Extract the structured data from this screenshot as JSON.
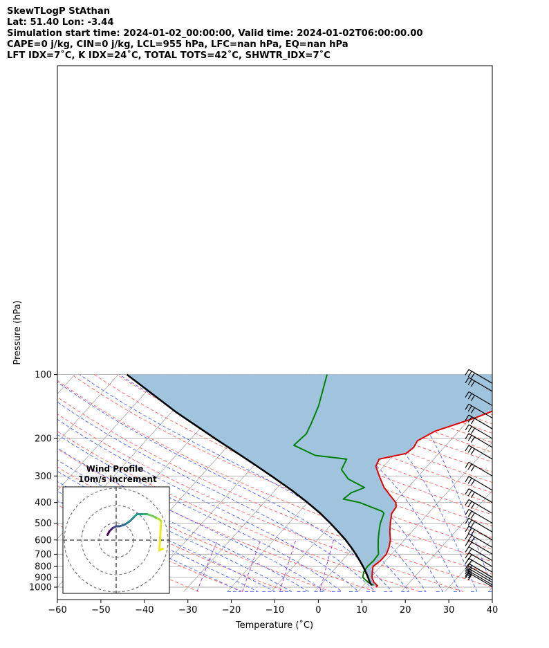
{
  "header": {
    "line1": "SkewTLogP StAthan",
    "line2": "Lat: 51.40   Lon: -3.44",
    "line3": "Simulation start time: 2024-01-02_00:00:00, Valid time: 2024-01-02T06:00:00.00",
    "line4": "CAPE=0 j/kg, CIN=0 j/kg, LCL=955 hPa, LFC=nan hPa, EQ=nan hPa",
    "line5": "LFT IDX=7˚C, K IDX=24˚C, TOTAL TOTS=42˚C, SHWTR_IDX=7˚C"
  },
  "colors": {
    "temperature": "#e00000",
    "dewpoint": "#008000",
    "parcel": "#000000",
    "cape_fill": "#a0c4de",
    "dry_adiabats": "#ff6f6f",
    "moist_adiabats": "#5a6fff",
    "mixing_ratio": "#9933cc",
    "isotherms": "#a8a8a8"
  },
  "inset": {
    "title": "Wind Profile",
    "subtitle": "10m/s increment"
  },
  "chart_data": {
    "type": "line",
    "chart_kind": "skew-T log-P diagram",
    "xlabel": "Temperature (˚C)",
    "ylabel": "Pressure (hPa)",
    "xlim": [
      -60,
      40
    ],
    "ylim": [
      1050,
      100
    ],
    "y_scale": "log",
    "x_ticks": [
      -60,
      -50,
      -40,
      -30,
      -20,
      -10,
      0,
      10,
      20,
      30,
      40
    ],
    "y_ticks": [
      100,
      200,
      300,
      400,
      500,
      600,
      700,
      800,
      900,
      1000
    ],
    "grid": true,
    "series": [
      {
        "key": "temperature",
        "points": [
          [
            1000,
            13.2
          ],
          [
            985,
            13.3
          ],
          [
            950,
            11.8
          ],
          [
            900,
            10.3
          ],
          [
            850,
            9.3
          ],
          [
            800,
            8.3
          ],
          [
            750,
            8.8
          ],
          [
            700,
            8.8
          ],
          [
            650,
            8.0
          ],
          [
            600,
            6.8
          ],
          [
            550,
            5.0
          ],
          [
            500,
            3.3
          ],
          [
            450,
            1.6
          ],
          [
            420,
            1.3
          ],
          [
            400,
            0.3
          ],
          [
            370,
            -2.5
          ],
          [
            340,
            -5.5
          ],
          [
            300,
            -9.0
          ],
          [
            270,
            -11.8
          ],
          [
            250,
            -12.5
          ],
          [
            235,
            -7.5
          ],
          [
            220,
            -7.0
          ],
          [
            205,
            -7.5
          ],
          [
            185,
            -5.5
          ],
          [
            160,
            1.0
          ],
          [
            145,
            4.5
          ],
          [
            130,
            5.7
          ],
          [
            115,
            6.5
          ],
          [
            105,
            8.0
          ],
          [
            100,
            8.5
          ]
        ]
      },
      {
        "key": "dewpoint",
        "points": [
          [
            980,
            12.3
          ],
          [
            950,
            10.5
          ],
          [
            900,
            8.2
          ],
          [
            850,
            7.3
          ],
          [
            800,
            7.0
          ],
          [
            750,
            7.2
          ],
          [
            700,
            7.0
          ],
          [
            650,
            5.5
          ],
          [
            600,
            4.0
          ],
          [
            550,
            2.5
          ],
          [
            500,
            1.0
          ],
          [
            450,
            -0.2
          ],
          [
            440,
            -1.0
          ],
          [
            400,
            -8.0
          ],
          [
            385,
            -12.5
          ],
          [
            360,
            -12.0
          ],
          [
            340,
            -10.0
          ],
          [
            310,
            -15.5
          ],
          [
            280,
            -19.0
          ],
          [
            250,
            -20.0
          ],
          [
            240,
            -28.0
          ],
          [
            215,
            -35.0
          ],
          [
            190,
            -34.5
          ],
          [
            170,
            -35.5
          ],
          [
            140,
            -37.5
          ],
          [
            100,
            -42.0
          ]
        ]
      },
      {
        "key": "parcel",
        "points": [
          [
            980,
            11.9
          ],
          [
            955,
            11.0
          ],
          [
            900,
            9.4
          ],
          [
            850,
            7.8
          ],
          [
            800,
            6.0
          ],
          [
            750,
            4.0
          ],
          [
            700,
            1.8
          ],
          [
            650,
            -0.7
          ],
          [
            600,
            -3.5
          ],
          [
            550,
            -6.8
          ],
          [
            500,
            -10.5
          ],
          [
            450,
            -14.8
          ],
          [
            400,
            -20.0
          ],
          [
            350,
            -26.2
          ],
          [
            300,
            -33.8
          ],
          [
            250,
            -43.0
          ],
          [
            200,
            -54.5
          ],
          [
            150,
            -69.0
          ],
          [
            100,
            -88.0
          ]
        ]
      }
    ],
    "wind_barbs_pressure": [
      995,
      975,
      950,
      925,
      900,
      850,
      800,
      750,
      700,
      650,
      600,
      550,
      500,
      450,
      400,
      350,
      300,
      250,
      220,
      200,
      180,
      160,
      140,
      120,
      110
    ],
    "hodograph": {
      "ring_increment_ms": 10,
      "ring_radii_ms": [
        10,
        20,
        30
      ],
      "points_uv": [
        [
          27,
          -5
        ],
        [
          25,
          -6
        ],
        [
          26,
          11
        ],
        [
          25,
          12
        ],
        [
          23,
          13
        ],
        [
          21,
          14
        ],
        [
          18,
          15
        ],
        [
          15,
          15
        ],
        [
          12,
          15
        ],
        [
          10,
          13
        ],
        [
          8,
          11
        ],
        [
          5,
          9
        ],
        [
          2,
          8
        ],
        [
          0,
          8
        ],
        [
          -2,
          7
        ],
        [
          -3,
          6
        ],
        [
          -4,
          5
        ],
        [
          -5,
          3
        ]
      ]
    }
  }
}
